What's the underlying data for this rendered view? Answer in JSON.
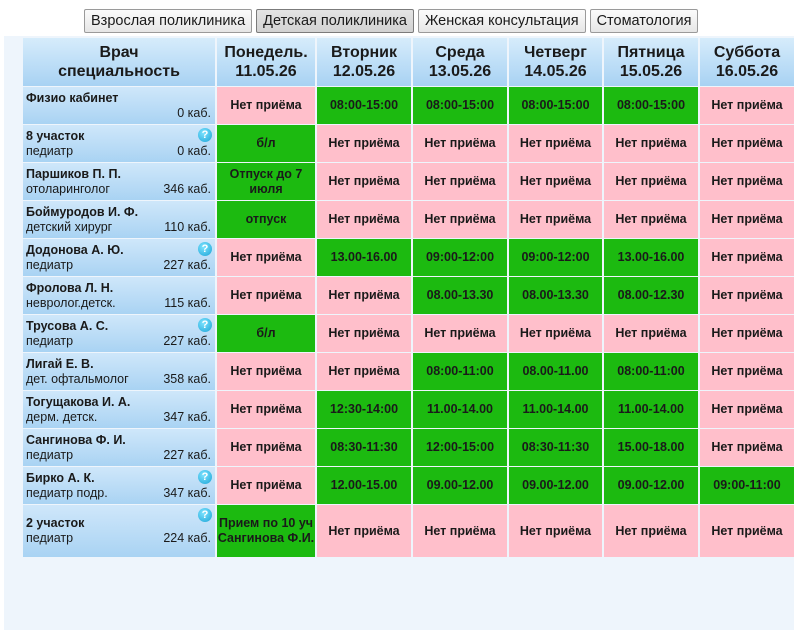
{
  "tabs": [
    {
      "label": "Взрослая поликлиника",
      "active": false
    },
    {
      "label": "Детская поликлиника",
      "active": true
    },
    {
      "label": "Женская консультация",
      "active": false
    },
    {
      "label": "Стоматология",
      "active": false
    }
  ],
  "header": {
    "doctor_col_line1": "Врач",
    "doctor_col_line2": "специальность",
    "days": [
      {
        "day": "Понедель.",
        "date": "11.05.26"
      },
      {
        "day": "Вторник",
        "date": "12.05.26"
      },
      {
        "day": "Среда",
        "date": "13.05.26"
      },
      {
        "day": "Четверг",
        "date": "14.05.26"
      },
      {
        "day": "Пятница",
        "date": "15.05.26"
      },
      {
        "day": "Суббота",
        "date": "16.05.26"
      }
    ]
  },
  "colors": {
    "available": "#1cba10",
    "no_reception": "#ffbfcb",
    "header": "#a8d2f3"
  },
  "rows": [
    {
      "name": "Физио кабинет",
      "spec": "",
      "room": "0 каб.",
      "help_icon": false,
      "cells": [
        {
          "text": "Нет приёма",
          "status": "pink"
        },
        {
          "text": "08:00-15:00",
          "status": "green"
        },
        {
          "text": "08:00-15:00",
          "status": "green"
        },
        {
          "text": "08:00-15:00",
          "status": "green"
        },
        {
          "text": "08:00-15:00",
          "status": "green"
        },
        {
          "text": "Нет приёма",
          "status": "pink"
        }
      ]
    },
    {
      "name": "8 участок",
      "spec": "педиатр",
      "room": "0 каб.",
      "help_icon": true,
      "cells": [
        {
          "text": "б/л",
          "status": "green"
        },
        {
          "text": "Нет приёма",
          "status": "pink"
        },
        {
          "text": "Нет приёма",
          "status": "pink"
        },
        {
          "text": "Нет приёма",
          "status": "pink"
        },
        {
          "text": "Нет приёма",
          "status": "pink"
        },
        {
          "text": "Нет приёма",
          "status": "pink"
        }
      ]
    },
    {
      "name": "Паршиков П. П.",
      "spec": "отоларинголог",
      "room": "346 каб.",
      "help_icon": false,
      "cells": [
        {
          "text": "Отпуск до 7 июля",
          "status": "green"
        },
        {
          "text": "Нет приёма",
          "status": "pink"
        },
        {
          "text": "Нет приёма",
          "status": "pink"
        },
        {
          "text": "Нет приёма",
          "status": "pink"
        },
        {
          "text": "Нет приёма",
          "status": "pink"
        },
        {
          "text": "Нет приёма",
          "status": "pink"
        }
      ]
    },
    {
      "name": "Боймуродов И. Ф.",
      "spec": "детский хирург",
      "room": "110 каб.",
      "help_icon": false,
      "cells": [
        {
          "text": "отпуск",
          "status": "green"
        },
        {
          "text": "Нет приёма",
          "status": "pink"
        },
        {
          "text": "Нет приёма",
          "status": "pink"
        },
        {
          "text": "Нет приёма",
          "status": "pink"
        },
        {
          "text": "Нет приёма",
          "status": "pink"
        },
        {
          "text": "Нет приёма",
          "status": "pink"
        }
      ]
    },
    {
      "name": "Додонова А. Ю.",
      "spec": "педиатр",
      "room": "227 каб.",
      "help_icon": true,
      "cells": [
        {
          "text": "Нет приёма",
          "status": "pink"
        },
        {
          "text": "13.00-16.00",
          "status": "green"
        },
        {
          "text": "09:00-12:00",
          "status": "green"
        },
        {
          "text": "09:00-12:00",
          "status": "green"
        },
        {
          "text": "13.00-16.00",
          "status": "green"
        },
        {
          "text": "Нет приёма",
          "status": "pink"
        }
      ]
    },
    {
      "name": "Фролова Л. Н.",
      "spec": "невролог.детск.",
      "room": "115 каб.",
      "help_icon": false,
      "cells": [
        {
          "text": "Нет приёма",
          "status": "pink"
        },
        {
          "text": "Нет приёма",
          "status": "pink"
        },
        {
          "text": "08.00-13.30",
          "status": "green"
        },
        {
          "text": "08.00-13.30",
          "status": "green"
        },
        {
          "text": "08.00-12.30",
          "status": "green"
        },
        {
          "text": "Нет приёма",
          "status": "pink"
        }
      ]
    },
    {
      "name": "Трусова А. С.",
      "spec": "педиатр",
      "room": "227 каб.",
      "help_icon": true,
      "cells": [
        {
          "text": "б/л",
          "status": "green"
        },
        {
          "text": "Нет приёма",
          "status": "pink"
        },
        {
          "text": "Нет приёма",
          "status": "pink"
        },
        {
          "text": "Нет приёма",
          "status": "pink"
        },
        {
          "text": "Нет приёма",
          "status": "pink"
        },
        {
          "text": "Нет приёма",
          "status": "pink"
        }
      ]
    },
    {
      "name": "Лигай Е. В.",
      "spec": "дет. офтальмолог",
      "room": "358 каб.",
      "help_icon": false,
      "cells": [
        {
          "text": "Нет приёма",
          "status": "pink"
        },
        {
          "text": "Нет приёма",
          "status": "pink"
        },
        {
          "text": "08:00-11:00",
          "status": "green"
        },
        {
          "text": "08.00-11.00",
          "status": "green"
        },
        {
          "text": "08:00-11:00",
          "status": "green"
        },
        {
          "text": "Нет приёма",
          "status": "pink"
        }
      ]
    },
    {
      "name": "Тогущакова И. А.",
      "spec": "дерм. детск.",
      "room": "347 каб.",
      "help_icon": false,
      "cells": [
        {
          "text": "Нет приёма",
          "status": "pink"
        },
        {
          "text": "12:30-14:00",
          "status": "green"
        },
        {
          "text": "11.00-14.00",
          "status": "green"
        },
        {
          "text": "11.00-14.00",
          "status": "green"
        },
        {
          "text": "11.00-14.00",
          "status": "green"
        },
        {
          "text": "Нет приёма",
          "status": "pink"
        }
      ]
    },
    {
      "name": "Сангинова Ф. И.",
      "spec": "педиатр",
      "room": "227 каб.",
      "help_icon": false,
      "cells": [
        {
          "text": "Нет приёма",
          "status": "pink"
        },
        {
          "text": "08:30-11:30",
          "status": "green"
        },
        {
          "text": "12:00-15:00",
          "status": "green"
        },
        {
          "text": "08:30-11:30",
          "status": "green"
        },
        {
          "text": "15.00-18.00",
          "status": "green"
        },
        {
          "text": "Нет приёма",
          "status": "pink"
        }
      ]
    },
    {
      "name": "Бирко А. К.",
      "spec": "педиатр подр.",
      "room": "347 каб.",
      "help_icon": true,
      "cells": [
        {
          "text": "Нет приёма",
          "status": "pink"
        },
        {
          "text": "12.00-15.00",
          "status": "green"
        },
        {
          "text": "09.00-12.00",
          "status": "green"
        },
        {
          "text": "09.00-12.00",
          "status": "green"
        },
        {
          "text": "09.00-12.00",
          "status": "green"
        },
        {
          "text": "09:00-11:00",
          "status": "green"
        }
      ]
    },
    {
      "name": "2 участок",
      "spec": "педиатр",
      "room": "224 каб.",
      "help_icon": true,
      "tall": true,
      "cells": [
        {
          "text": "Прием по 10 уч Сангинова Ф.И.",
          "status": "green"
        },
        {
          "text": "Нет приёма",
          "status": "pink"
        },
        {
          "text": "Нет приёма",
          "status": "pink"
        },
        {
          "text": "Нет приёма",
          "status": "pink"
        },
        {
          "text": "Нет приёма",
          "status": "pink"
        },
        {
          "text": "Нет приёма",
          "status": "pink"
        }
      ]
    }
  ]
}
